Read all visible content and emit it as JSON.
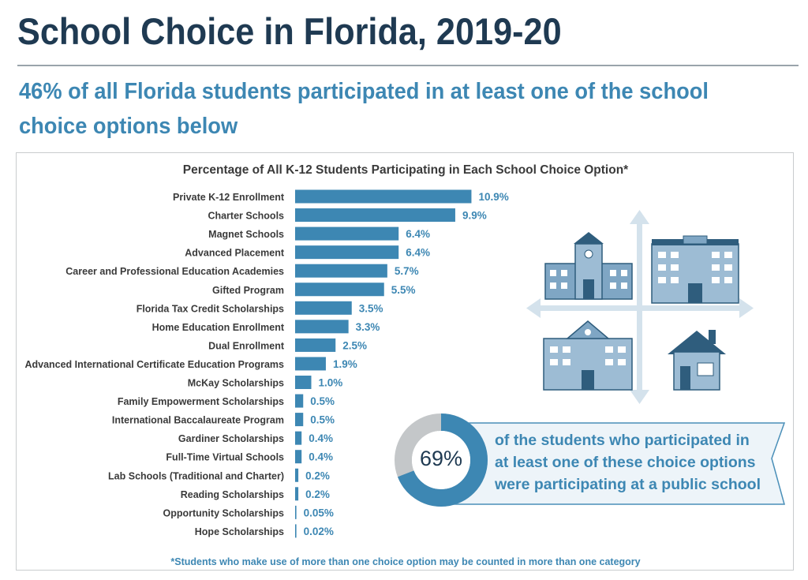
{
  "title": "School Choice in Florida, 2019-20",
  "subtitle": "46% of all Florida students participated in at least one of the school choice options below",
  "chart_data": {
    "type": "bar",
    "orientation": "horizontal",
    "title": "Percentage of All K-12 Students Participating in Each School Choice Option*",
    "categories": [
      "Private K-12 Enrollment",
      "Charter Schools",
      "Magnet Schools",
      "Advanced Placement",
      "Career and Professional Education Academies",
      "Gifted Program",
      "Florida Tax Credit Scholarships",
      "Home Education Enrollment",
      "Dual Enrollment",
      "Advanced International Certificate Education Programs",
      "McKay Scholarships",
      "Family Empowerment Scholarships",
      "International Baccalaureate Program",
      "Gardiner Scholarships",
      "Full-Time Virtual Schools",
      "Lab Schools (Traditional and Charter)",
      "Reading Scholarships",
      "Opportunity Scholarships",
      "Hope Scholarships"
    ],
    "values": [
      10.9,
      9.9,
      6.4,
      6.4,
      5.7,
      5.5,
      3.5,
      3.3,
      2.5,
      1.9,
      1.0,
      0.5,
      0.5,
      0.4,
      0.4,
      0.2,
      0.2,
      0.05,
      0.02
    ],
    "value_labels": [
      "10.9%",
      "9.9%",
      "6.4%",
      "6.4%",
      "5.7%",
      "5.5%",
      "3.5%",
      "3.3%",
      "2.5%",
      "1.9%",
      "1.0%",
      "0.5%",
      "0.5%",
      "0.4%",
      "0.4%",
      "0.2%",
      "0.2%",
      "0.05%",
      "0.02%"
    ],
    "bar_color": "#3d87b3",
    "grid": false,
    "legend": "none"
  },
  "callout": {
    "percent": 69,
    "percent_label": "69%",
    "text": "of the students who participated in at least one of these choice options were participating at a public school",
    "primary_color": "#3d87b3",
    "secondary_color": "#c4c7c9"
  },
  "footnote": "*Students who make use of more than one choice option may be counted in more than one category",
  "illustration": [
    "school-building-icon",
    "school-building-icon",
    "school-building-icon",
    "house-icon",
    "arrows-icon"
  ]
}
